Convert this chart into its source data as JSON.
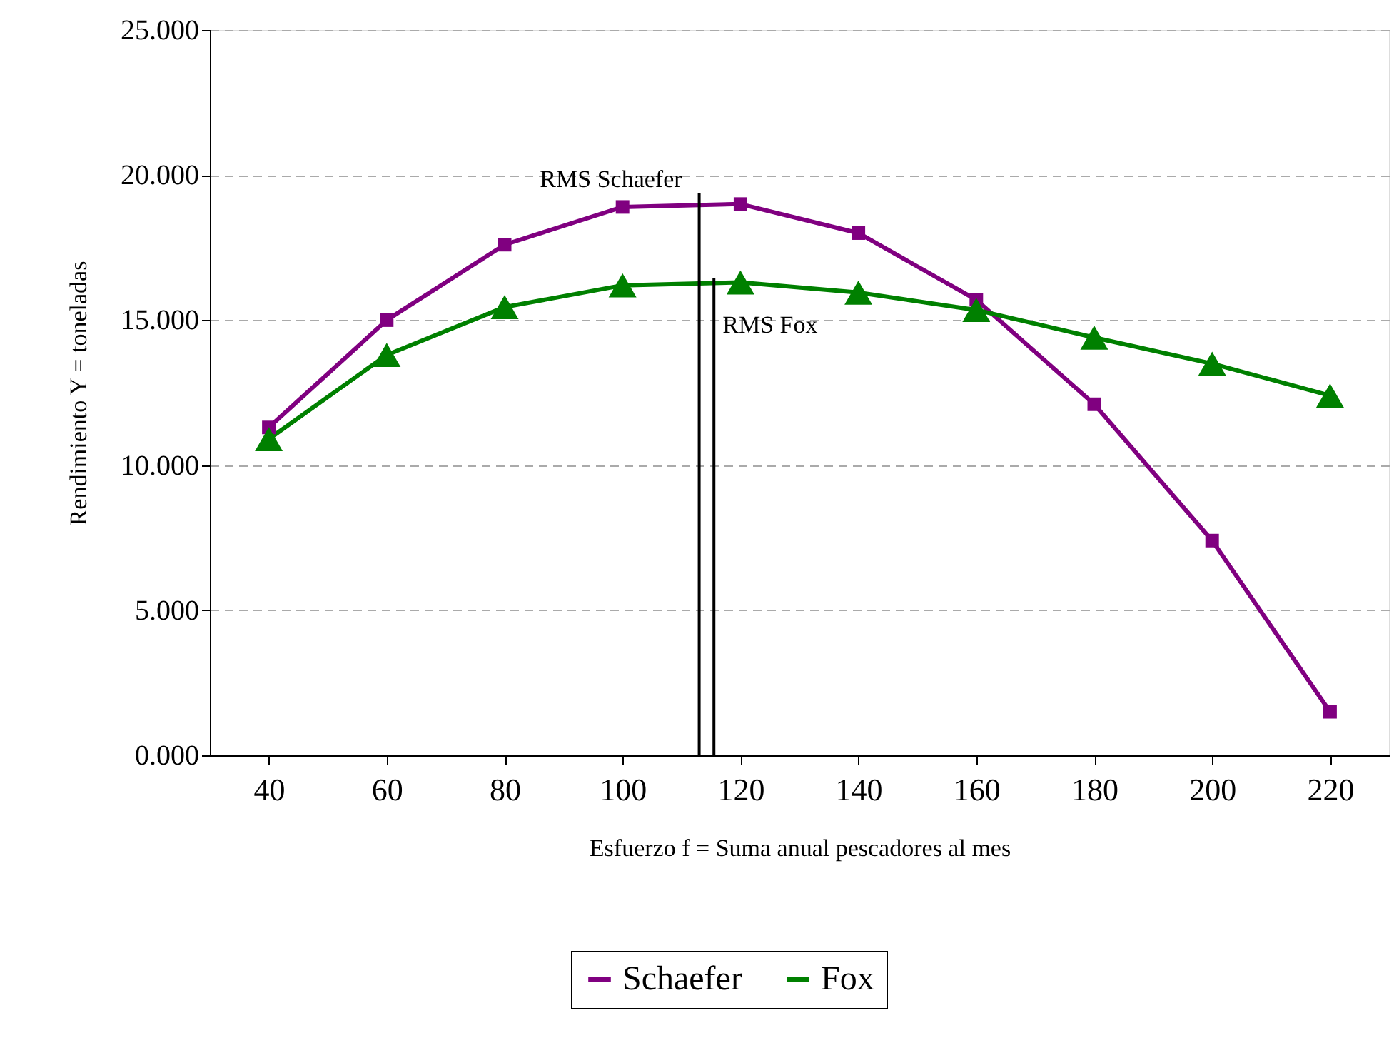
{
  "chart_data": {
    "type": "line",
    "xlabel": "Esfuerzo f = Suma anual pescadores al mes",
    "ylabel": "Rendimiento Y = toneladas",
    "x": [
      40,
      60,
      80,
      100,
      120,
      140,
      160,
      180,
      200,
      220
    ],
    "xlim": [
      30,
      230
    ],
    "xticks": [
      40,
      60,
      80,
      100,
      120,
      140,
      160,
      180,
      200,
      220
    ],
    "ylim": [
      0,
      25
    ],
    "yticks": [
      {
        "value": 0,
        "label": "0.000"
      },
      {
        "value": 5,
        "label": "5.000"
      },
      {
        "value": 10,
        "label": "10.000"
      },
      {
        "value": 15,
        "label": "15.000"
      },
      {
        "value": 20,
        "label": "20.000"
      },
      {
        "value": 25,
        "label": "25.000"
      }
    ],
    "series": [
      {
        "name": "Schaefer",
        "color": "#800080",
        "marker": "square",
        "values": [
          11.3,
          15.0,
          17.6,
          18.9,
          19.0,
          18.0,
          15.7,
          12.1,
          7.4,
          1.5
        ]
      },
      {
        "name": "Fox",
        "color": "#008000",
        "marker": "triangle",
        "values": [
          10.9,
          13.8,
          15.45,
          16.2,
          16.3,
          15.95,
          15.35,
          14.4,
          13.5,
          12.4
        ]
      }
    ],
    "ref_lines": [
      {
        "axis": "x",
        "value": 113,
        "label": "RMS Schaefer",
        "color": "#000000"
      },
      {
        "axis": "x",
        "value": 115.5,
        "label": "RMS Fox",
        "color": "#000000"
      }
    ],
    "grid": "y",
    "legend": "bottom",
    "line_style": "solid"
  }
}
